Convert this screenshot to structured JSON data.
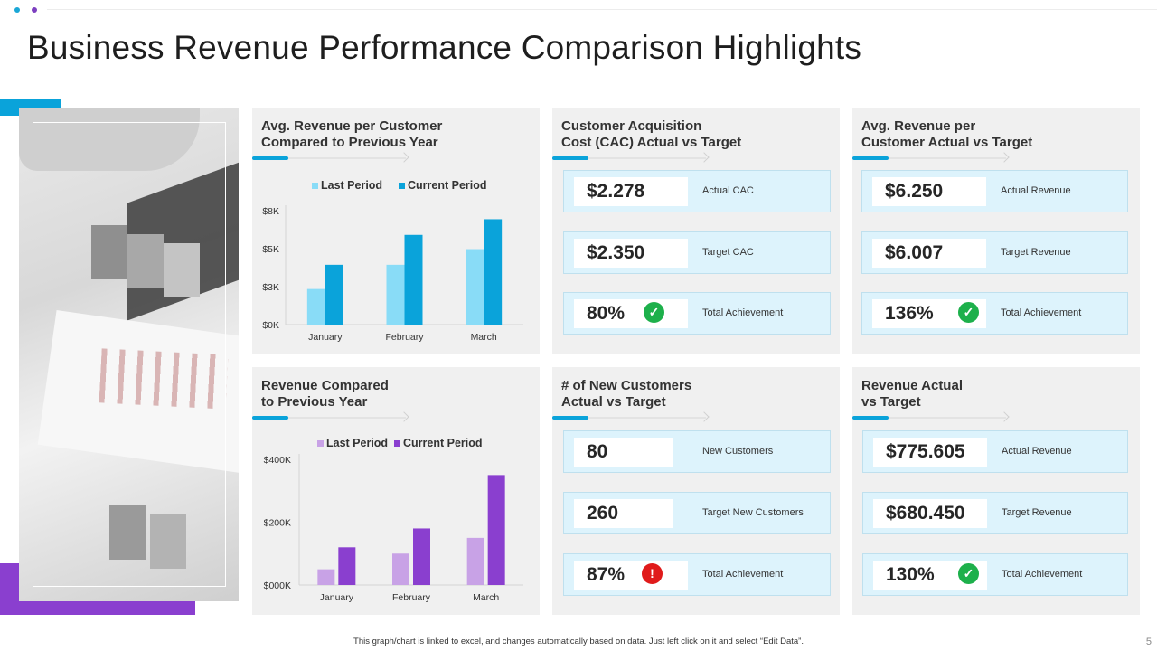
{
  "page": {
    "title": "Business Revenue Performance Comparison Highlights",
    "footnote": "This graph/chart is linked to excel, and changes automatically based on data. Just left click on it and select “Edit Data”.",
    "page_number": "5"
  },
  "colors": {
    "accent_cyan": "#0aa3da",
    "accent_purple": "#8a3fcf",
    "kpi_bg": "#ddf3fc",
    "ok": "#1db04b",
    "warn": "#e01b1b"
  },
  "panels": {
    "avg_rev_yoy": {
      "title_line1": "Avg. Revenue per Customer",
      "title_line2": "Compared to Previous Year"
    },
    "cac": {
      "title_line1": "Customer Acquisition",
      "title_line2": "Cost (CAC) Actual  vs Target",
      "rows": [
        {
          "value": "$2.278",
          "label": "Actual CAC"
        },
        {
          "value": "$2.350",
          "label": "Target CAC"
        },
        {
          "value": "80%",
          "label": "Total Achievement",
          "status_icon": "check-circle-icon"
        }
      ]
    },
    "avg_rev_target": {
      "title_line1": "Avg. Revenue per",
      "title_line2": "Customer Actual  vs Target",
      "rows": [
        {
          "value": "$6.250",
          "label": "Actual Revenue"
        },
        {
          "value": "$6.007",
          "label": "Target Revenue"
        },
        {
          "value": "136%",
          "label": "Total Achievement",
          "status_icon": "check-circle-icon"
        }
      ]
    },
    "revenue_yoy": {
      "title_line1": "Revenue Compared",
      "title_line2": "to Previous Year"
    },
    "new_customers": {
      "title_line1": "# of New Customers",
      "title_line2": "Actual  vs Target",
      "rows": [
        {
          "value": "80",
          "label": "New Customers"
        },
        {
          "value": "260",
          "label": "Target New Customers"
        },
        {
          "value": "87%",
          "label": "Total Achievement",
          "status_icon": "exclamation-circle-icon"
        }
      ]
    },
    "revenue_target": {
      "title_line1": "Revenue Actual",
      "title_line2": "vs Target",
      "rows": [
        {
          "value": "$775.605",
          "label": "Actual Revenue"
        },
        {
          "value": "$680.450",
          "label": "Target Revenue"
        },
        {
          "value": "130%",
          "label": "Total Achievement",
          "status_icon": "check-circle-icon"
        }
      ]
    }
  },
  "chart_data": [
    {
      "type": "bar",
      "title": "Avg. Revenue per Customer Compared to Previous Year",
      "categories": [
        "January",
        "February",
        "March"
      ],
      "series": [
        {
          "name": "Last Period",
          "values": [
            2.5,
            4.2,
            5.3
          ],
          "color": "#89dcf7"
        },
        {
          "name": "Current Period",
          "values": [
            4.2,
            6.3,
            7.4
          ],
          "color": "#0aa3da"
        }
      ],
      "ylim": [
        0,
        8
      ],
      "yticks": [
        0,
        2.67,
        5.33,
        8
      ],
      "ytick_labels": [
        "$0K",
        "$3K",
        "$5K",
        "$8K"
      ],
      "legend": "top"
    },
    {
      "type": "bar",
      "title": "Revenue Compared to Previous Year",
      "categories": [
        "January",
        "February",
        "March"
      ],
      "series": [
        {
          "name": "Last Period",
          "values": [
            50,
            100,
            150
          ],
          "color": "#c8a2e6"
        },
        {
          "name": "Current Period",
          "values": [
            120,
            180,
            350
          ],
          "color": "#8a3fcf"
        }
      ],
      "ylim": [
        0,
        400
      ],
      "yticks": [
        0,
        200,
        400
      ],
      "ytick_labels": [
        "$000K",
        "$200K",
        "$400K"
      ],
      "legend": "top"
    }
  ]
}
